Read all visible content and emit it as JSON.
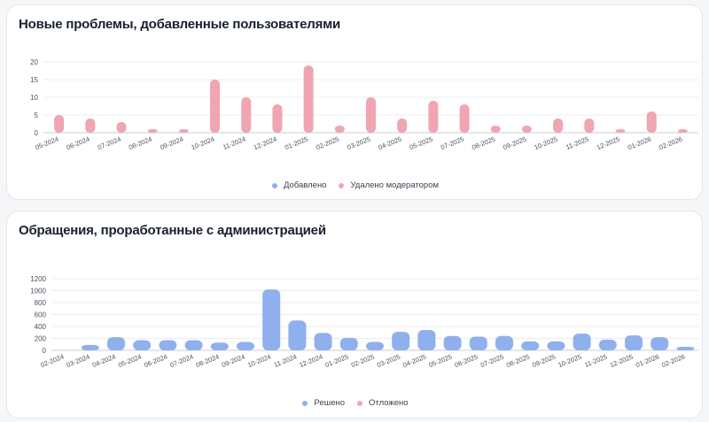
{
  "colors": {
    "blue": "#8fb0ec",
    "pink": "#f0a5b0",
    "grid": "#e8ecf1",
    "axis": "#c9ced6"
  },
  "cards": [
    {
      "title": "Новые проблемы, добавленные пользователями",
      "legend": [
        {
          "label": "Добавлено",
          "color": "#8fb0ec"
        },
        {
          "label": "Удалено модератором",
          "color": "#f0a5b0"
        }
      ]
    },
    {
      "title": "Обращения, проработанные с администрацией",
      "legend": [
        {
          "label": "Решено",
          "color": "#8fb0ec"
        },
        {
          "label": "Отложено",
          "color": "#f0a5b0"
        }
      ]
    }
  ],
  "chart_data": [
    {
      "type": "bar",
      "title": "Новые проблемы, добавленные пользователями",
      "categories": [
        "05-2024",
        "06-2024",
        "07-2024",
        "08-2024",
        "09-2024",
        "10-2024",
        "11-2024",
        "12-2024",
        "01-2025",
        "02-2025",
        "03-2025",
        "04-2025",
        "05-2025",
        "07-2025",
        "08-2025",
        "09-2025",
        "10-2025",
        "11-2025",
        "12-2025",
        "01-2026",
        "02-2026"
      ],
      "series": [
        {
          "name": "Добавлено",
          "values": [
            0,
            0,
            0,
            0,
            0,
            0,
            0,
            0,
            0,
            0,
            0,
            0,
            0,
            0,
            0,
            0,
            0,
            0,
            0,
            0,
            0
          ]
        },
        {
          "name": "Удалено модератором",
          "values": [
            5,
            4,
            3,
            1,
            1,
            15,
            10,
            8,
            19,
            2,
            10,
            4,
            9,
            8,
            2,
            2,
            4,
            4,
            1,
            6,
            1
          ]
        }
      ],
      "yticks": [
        0,
        5,
        10,
        15,
        20
      ],
      "ylim": [
        0,
        20
      ],
      "legend_position": "bottom",
      "grid": true
    },
    {
      "type": "bar",
      "title": "Обращения, проработанные с администрацией",
      "categories": [
        "02-2024",
        "03-2024",
        "04-2024",
        "05-2024",
        "06-2024",
        "07-2024",
        "08-2024",
        "09-2024",
        "10-2024",
        "11-2024",
        "12-2024",
        "01-2025",
        "02-2025",
        "03-2025",
        "04-2025",
        "05-2025",
        "06-2025",
        "07-2025",
        "08-2025",
        "09-2025",
        "10-2025",
        "11-2025",
        "12-2025",
        "01-2026",
        "02-2026"
      ],
      "series": [
        {
          "name": "Решено",
          "values": [
            0,
            90,
            220,
            170,
            170,
            170,
            130,
            140,
            1020,
            500,
            290,
            210,
            140,
            310,
            340,
            240,
            230,
            240,
            150,
            150,
            280,
            180,
            250,
            220,
            60
          ]
        },
        {
          "name": "Отложено",
          "values": [
            0,
            0,
            0,
            0,
            0,
            0,
            0,
            0,
            0,
            0,
            0,
            0,
            0,
            0,
            0,
            0,
            0,
            0,
            0,
            0,
            0,
            0,
            0,
            0,
            0
          ]
        }
      ],
      "yticks": [
        0,
        200,
        400,
        600,
        800,
        1000,
        1200
      ],
      "ylim": [
        0,
        1200
      ],
      "legend_position": "bottom",
      "grid": true
    }
  ]
}
